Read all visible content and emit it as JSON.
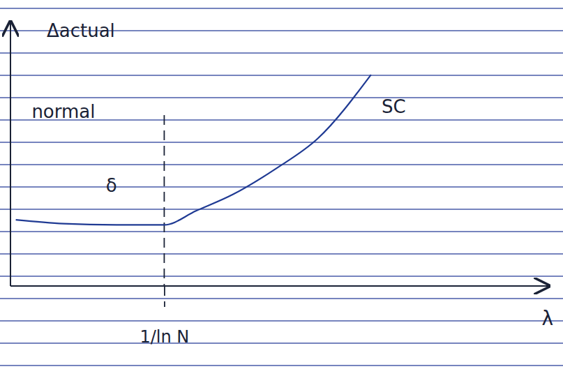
{
  "chart_data": {
    "type": "line",
    "xlabel": "λ",
    "ylabel": "Δactual",
    "x": [
      0.1,
      1.0,
      2.0,
      2.9,
      3.5,
      4.2,
      5.0,
      5.8,
      6.8
    ],
    "values": [
      2.6,
      2.45,
      2.4,
      2.4,
      2.95,
      3.6,
      4.6,
      5.8,
      8.3
    ],
    "color": "#1f3a93",
    "xlim": [
      0,
      10
    ],
    "ylim": [
      0,
      10
    ],
    "xticks": [
      {
        "value": 2.9,
        "label": "1/ln N"
      }
    ],
    "yticks": [],
    "grid": true,
    "tick_labels": "x",
    "annotations": [
      {
        "text": "normal",
        "x": 0.4,
        "y": 6.6
      },
      {
        "text": "δ",
        "x": 1.8,
        "y": 3.7
      },
      {
        "text": "SC",
        "x": 7.0,
        "y": 6.8
      }
    ]
  }
}
